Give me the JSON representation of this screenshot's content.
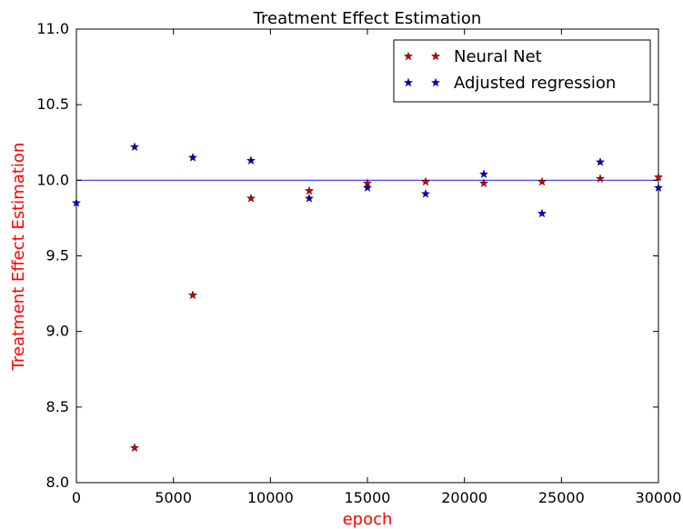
{
  "chart_data": {
    "type": "scatter",
    "title": "Treatment Effect Estimation",
    "xlabel": "epoch",
    "ylabel": "Treatment Effect Estimation",
    "xlim": [
      0,
      30000
    ],
    "ylim": [
      8.0,
      11.0
    ],
    "x_ticks": [
      0,
      5000,
      10000,
      15000,
      20000,
      25000,
      30000
    ],
    "x_tick_labels": [
      "0",
      "5000",
      "10000",
      "15000",
      "20000",
      "25000",
      "30000"
    ],
    "y_ticks": [
      8.0,
      8.5,
      9.0,
      9.5,
      10.0,
      10.5,
      11.0
    ],
    "y_tick_labels": [
      "8.0",
      "8.5",
      "9.0",
      "9.5",
      "10.0",
      "10.5",
      "11.0"
    ],
    "grid": false,
    "legend_position": "top-right",
    "reference_line": {
      "y": 10.0,
      "color": "#3333ff"
    },
    "series": [
      {
        "name": "Neural Net",
        "color": "#cc0000",
        "marker": "star",
        "x": [
          3000,
          6000,
          9000,
          12000,
          15000,
          18000,
          21000,
          24000,
          27000,
          30000
        ],
        "y": [
          8.23,
          9.24,
          9.88,
          9.93,
          9.98,
          9.99,
          9.98,
          9.99,
          10.01,
          10.02
        ]
      },
      {
        "name": "Adjusted regression",
        "color": "#0000cc",
        "marker": "star",
        "x": [
          0,
          3000,
          6000,
          9000,
          12000,
          15000,
          18000,
          21000,
          24000,
          27000,
          30000
        ],
        "y": [
          9.85,
          10.22,
          10.15,
          10.13,
          9.88,
          9.95,
          9.91,
          10.04,
          9.78,
          10.12,
          9.95
        ]
      }
    ]
  }
}
